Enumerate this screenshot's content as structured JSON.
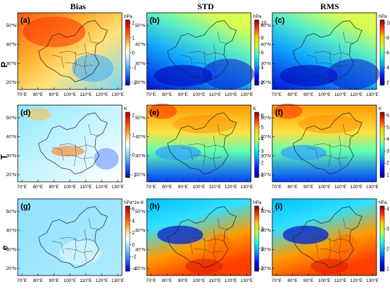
{
  "columns": [
    {
      "key": "bias",
      "label": "Bias"
    },
    {
      "key": "std",
      "label": "STD"
    },
    {
      "key": "rms",
      "label": "RMS"
    }
  ],
  "rows": [
    {
      "key": "P",
      "label": "P"
    },
    {
      "key": "T",
      "label": "T"
    },
    {
      "key": "e",
      "label": "e"
    }
  ],
  "x_ticks": [
    "70°E",
    "80°E",
    "90°E",
    "100°E",
    "110°E",
    "120°E",
    "130°E"
  ],
  "y_ticks": [
    "50°N",
    "40°N",
    "30°N",
    "20°N"
  ],
  "panels": [
    {
      "tag": "(a)",
      "unit": "hPa",
      "ticks": [
        "2",
        "1",
        "0",
        "-1",
        "-2"
      ],
      "cmap": "bias"
    },
    {
      "tag": "(b)",
      "unit": "hPa",
      "ticks": [
        "10",
        "8",
        "6",
        "4",
        "2"
      ],
      "cmap": "stat"
    },
    {
      "tag": "(c)",
      "unit": "hPa",
      "ticks": [
        "10",
        "8",
        "6",
        "4",
        "2"
      ],
      "cmap": "stat"
    },
    {
      "tag": "(d)",
      "unit": "K",
      "ticks": [
        "2",
        "1",
        "0",
        "-1"
      ],
      "cmap": "bias"
    },
    {
      "tag": "(e)",
      "unit": "K",
      "ticks": [
        "6",
        "5",
        "4",
        "3",
        "2",
        "1"
      ],
      "cmap": "stat"
    },
    {
      "tag": "(f)",
      "unit": "K",
      "ticks": [
        "6",
        "5",
        "4",
        "3",
        "2",
        "1"
      ],
      "cmap": "stat"
    },
    {
      "tag": "(g)",
      "unit": "hPa*1e-8",
      "ticks": [
        "6",
        "4",
        "2",
        "0",
        "-2",
        "-4"
      ],
      "cmap": "bias"
    },
    {
      "tag": "(h)",
      "unit": "hPa",
      "ticks": [
        "4",
        "3",
        "2",
        "1"
      ],
      "cmap": "stat"
    },
    {
      "tag": "(i)",
      "unit": "hPa",
      "ticks": [
        "4",
        "3",
        "2",
        "1"
      ],
      "cmap": "stat"
    }
  ],
  "colors": {
    "stat_ramp": [
      "#00008f",
      "#0010ff",
      "#00a0ff",
      "#20ffdf",
      "#bfff40",
      "#ffcf00",
      "#ff3000",
      "#800000"
    ],
    "bias_ramp": [
      "#0000a0",
      "#2060ff",
      "#60c0ff",
      "#c8f0ff",
      "#ffffff",
      "#fff0a0",
      "#ffa020",
      "#ff3000",
      "#a00000"
    ]
  }
}
